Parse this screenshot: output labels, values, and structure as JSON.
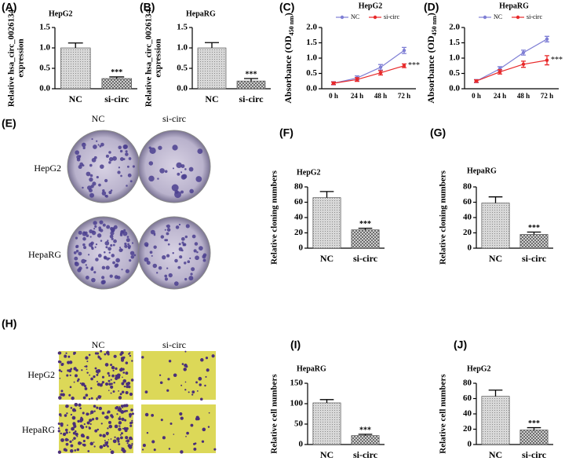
{
  "panels": [
    "(A)",
    "(B)",
    "(C)",
    "(D)",
    "(E)",
    "(F)",
    "(G)",
    "(H)",
    "(I)",
    "(J)"
  ],
  "colony_images": {
    "columns": [
      "NC",
      "si-circ"
    ],
    "rows": [
      "HepG2",
      "HepaRG"
    ]
  },
  "transwell_images": {
    "columns": [
      "NC",
      "si-circ"
    ],
    "rows": [
      "HepG2",
      "HepaRG"
    ]
  },
  "chart_data": [
    {
      "type": "bar",
      "title": "HepG2",
      "ylabel": [
        "Relative hsa_circ_0026134",
        "expression"
      ],
      "categories": [
        "NC",
        "si-circ"
      ],
      "values": [
        1.0,
        0.25
      ],
      "errors": [
        0.12,
        0.04
      ],
      "annotation": "***",
      "ylim": [
        0,
        1.5
      ],
      "yticks": [
        {
          "value": 0,
          "label": "0.0"
        },
        {
          "value": 0.5,
          "label": "0.5"
        },
        {
          "value": 1,
          "label": "1.0"
        },
        {
          "value": 1.5,
          "label": "1.5"
        }
      ]
    },
    {
      "type": "bar",
      "title": "HepaRG",
      "ylabel": [
        "Relative hsa_circ_0026134",
        "expression"
      ],
      "categories": [
        "NC",
        "si-circ"
      ],
      "values": [
        1.0,
        0.19
      ],
      "errors": [
        0.13,
        0.06
      ],
      "annotation": "***",
      "ylim": [
        0,
        1.5
      ],
      "yticks": [
        {
          "value": 0,
          "label": "0.0"
        },
        {
          "value": 0.5,
          "label": "0.5"
        },
        {
          "value": 1,
          "label": "1.0"
        },
        {
          "value": 1.5,
          "label": "1.5"
        }
      ]
    },
    {
      "type": "line",
      "title": "HepG2",
      "ylabel": "Absorbance (OD",
      "ylabel_subscript": "450 nm",
      "ylabel_end": ")",
      "categories": [
        "0 h",
        "24 h",
        "48 h",
        "72 h"
      ],
      "series": [
        {
          "name": "NC",
          "color": "#7f7fd5",
          "values": [
            0.18,
            0.35,
            0.7,
            1.25
          ],
          "errors": [
            0.05,
            0.07,
            0.09,
            0.1
          ]
        },
        {
          "name": "si-circ",
          "color": "#e8292a",
          "values": [
            0.18,
            0.3,
            0.52,
            0.75
          ],
          "errors": [
            0.04,
            0.06,
            0.07,
            0.06
          ]
        }
      ],
      "annotation": "***",
      "ylim": [
        0,
        2
      ],
      "yticks": [
        {
          "value": 0,
          "label": "0.0"
        },
        {
          "value": 0.5,
          "label": "0.5"
        },
        {
          "value": 1,
          "label": "1.0"
        },
        {
          "value": 1.5,
          "label": "1.5"
        },
        {
          "value": 2,
          "label": "2.0"
        }
      ]
    },
    {
      "type": "line",
      "title": "HepaRG",
      "ylabel": "Absorbance (OD",
      "ylabel_subscript": "450 nm",
      "ylabel_end": ")",
      "categories": [
        "0 h",
        "24 h",
        "48 h",
        "72 h"
      ],
      "series": [
        {
          "name": "NC",
          "color": "#7f7fd5",
          "values": [
            0.25,
            0.65,
            1.18,
            1.62
          ],
          "errors": [
            0.05,
            0.07,
            0.08,
            0.09
          ]
        },
        {
          "name": "si-circ",
          "color": "#e8292a",
          "values": [
            0.25,
            0.55,
            0.8,
            0.93
          ],
          "errors": [
            0.04,
            0.07,
            0.1,
            0.15
          ]
        }
      ],
      "annotation": "***",
      "ylim": [
        0,
        2
      ],
      "yticks": [
        {
          "value": 0,
          "label": "0.0"
        },
        {
          "value": 0.5,
          "label": "0.5"
        },
        {
          "value": 1,
          "label": "1.0"
        },
        {
          "value": 1.5,
          "label": "1.5"
        },
        {
          "value": 2,
          "label": "2.0"
        }
      ]
    },
    {
      "type": "bar",
      "title": "HepG2",
      "ylabel": [
        "Relative cloning numbers"
      ],
      "categories": [
        "NC",
        "si-circ"
      ],
      "values": [
        66,
        24
      ],
      "errors": [
        8,
        2
      ],
      "annotation": "***",
      "ylim": [
        0,
        80
      ],
      "yticks": [
        0,
        20,
        40,
        60,
        80
      ]
    },
    {
      "type": "bar",
      "title": "HepaRG",
      "ylabel": [
        "Relative cloning numbers"
      ],
      "categories": [
        "NC",
        "si-circ"
      ],
      "values": [
        59,
        18
      ],
      "errors": [
        8,
        3
      ],
      "annotation": "***",
      "ylim": [
        0,
        80
      ],
      "yticks": [
        0,
        20,
        40,
        60,
        80
      ]
    },
    {
      "type": "bar",
      "title": "HepaRG",
      "ylabel": [
        "Relative cell numbers"
      ],
      "categories": [
        "NC",
        "si-circ"
      ],
      "values": [
        102,
        22
      ],
      "errors": [
        8,
        3
      ],
      "annotation": "***",
      "ylim": [
        0,
        150
      ],
      "yticks": [
        0,
        50,
        100,
        150
      ]
    },
    {
      "type": "bar",
      "title": "HepG2",
      "ylabel": [
        "Relative cell numbers"
      ],
      "categories": [
        "NC",
        "si-circ"
      ],
      "values": [
        63,
        19
      ],
      "errors": [
        8,
        3
      ],
      "annotation": "***",
      "ylim": [
        0,
        80
      ],
      "yticks": [
        0,
        20,
        40,
        60,
        80
      ]
    }
  ]
}
